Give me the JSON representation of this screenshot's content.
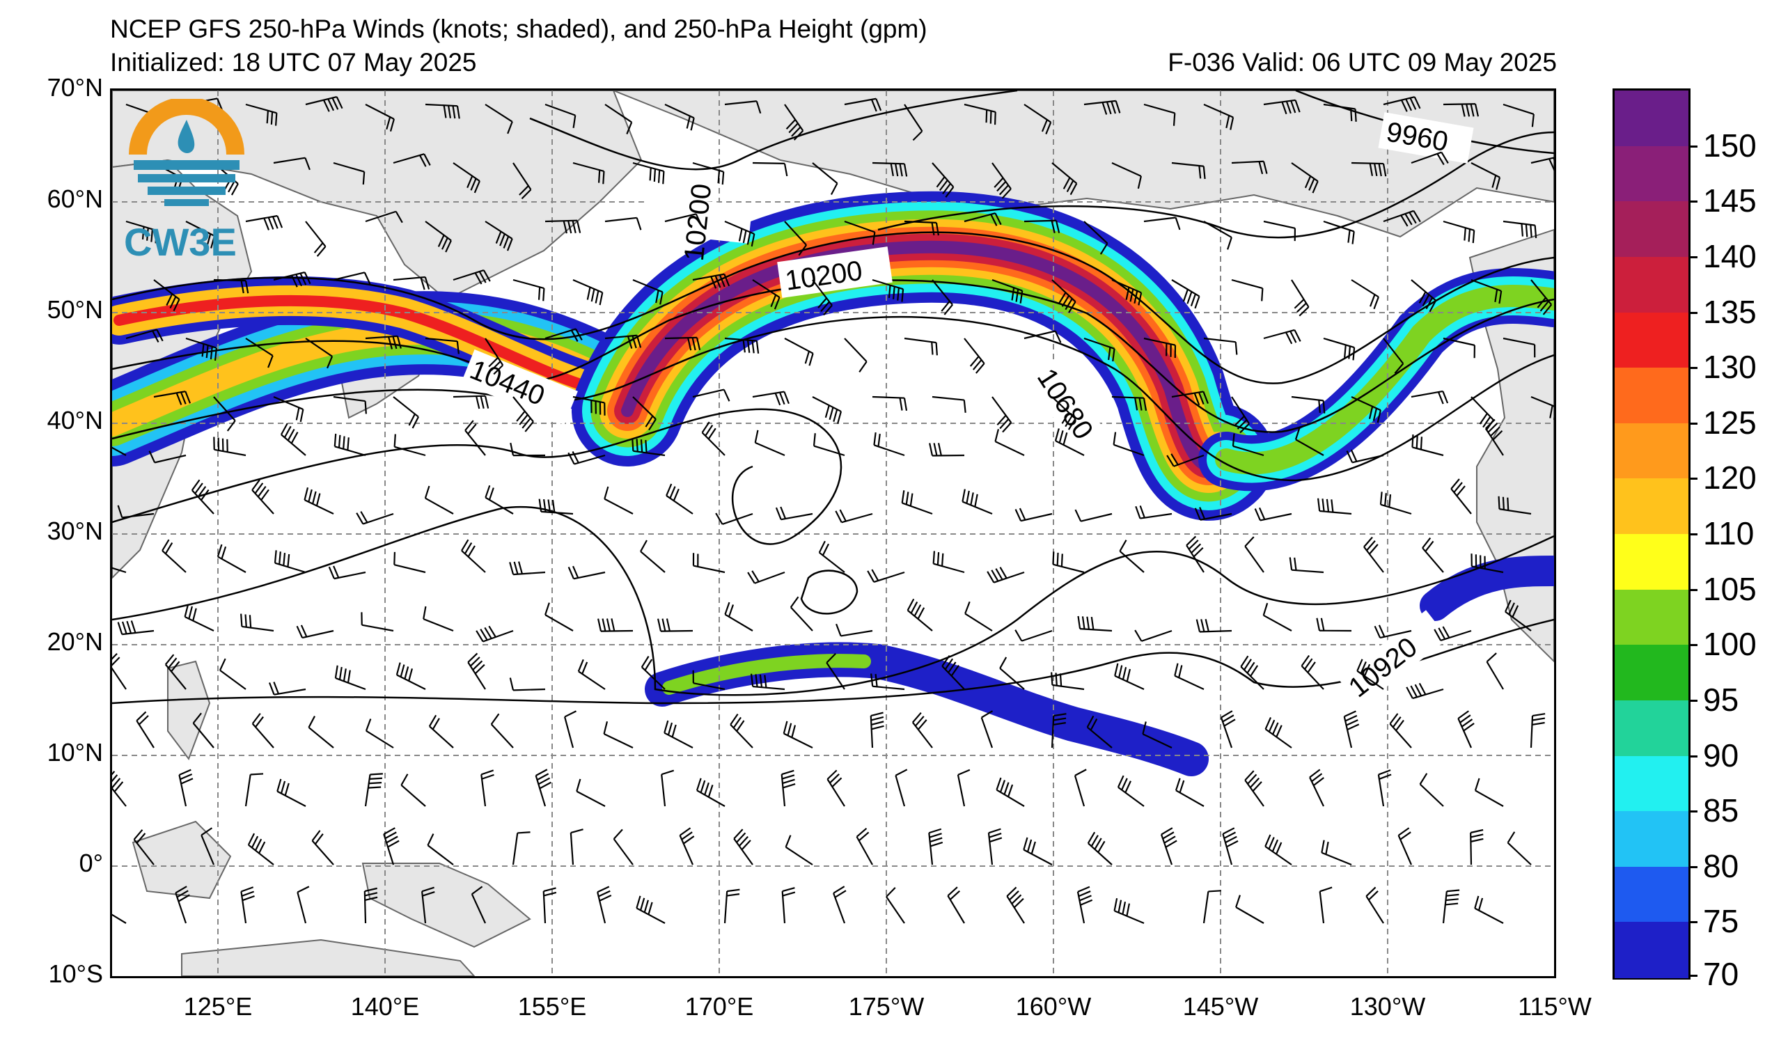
{
  "header": {
    "title": "NCEP GFS 250-hPa Winds (knots; shaded), and 250-hPa Height (gpm)",
    "init": "Initialized: 18 UTC 07 May 2025",
    "valid": "F-036  Valid: 06 UTC 09 May 2025"
  },
  "logo": {
    "text": "CW3E"
  },
  "axes": {
    "lat_labels": [
      "70°N",
      "60°N",
      "50°N",
      "40°N",
      "30°N",
      "20°N",
      "10°N",
      "0°",
      "10°S"
    ],
    "lon_labels": [
      "125°E",
      "140°E",
      "155°E",
      "170°E",
      "175°W",
      "160°W",
      "145°W",
      "130°W",
      "115°W"
    ]
  },
  "contours": {
    "labels": [
      "10200",
      "10200",
      "9960",
      "10440",
      "10680",
      "10920"
    ]
  },
  "colorbar": {
    "labels": [
      "150",
      "145",
      "140",
      "135",
      "130",
      "125",
      "120",
      "110",
      "105",
      "100",
      "95",
      "90",
      "85",
      "80",
      "75",
      "70"
    ],
    "colors": [
      "#6a1e8a",
      "#8a1f78",
      "#a51f5a",
      "#cc1f3c",
      "#ee2020",
      "#ff6a1c",
      "#ff9a1c",
      "#ffc21c",
      "#ffff1a",
      "#7ed321",
      "#22b81e",
      "#22d39a",
      "#22f0f0",
      "#22c3f5",
      "#1e5af0",
      "#1e20c8"
    ]
  }
}
